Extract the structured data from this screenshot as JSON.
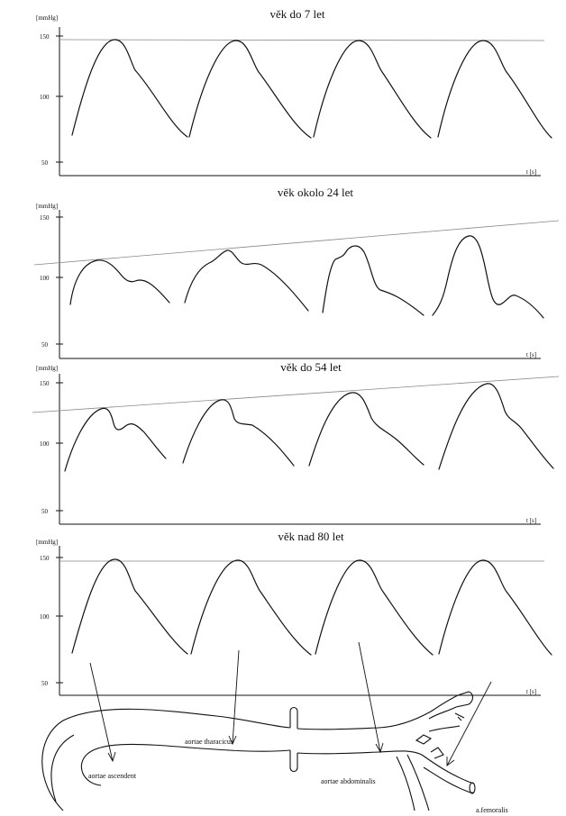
{
  "panels": [
    {
      "title": "věk do 7 let",
      "unit": "[mmHg]",
      "x_unit": "t [s]",
      "ticks": [
        "150",
        "100",
        "50"
      ],
      "reference_line": "horizontal at 150 mmHg"
    },
    {
      "title": "věk okolo 24 let",
      "unit": "[mmHg]",
      "x_unit": "t [s]",
      "ticks": [
        "150",
        "100",
        "50"
      ],
      "reference_line": "rising"
    },
    {
      "title": "věk do 54 let",
      "unit": "[mmHg]",
      "x_unit": "t [s]",
      "ticks": [
        "150",
        "100",
        "50"
      ],
      "reference_line": "rising"
    },
    {
      "title": "věk nad 80 let",
      "unit": "[mmHg]",
      "x_unit": "t [s]",
      "ticks": [
        "150",
        "100",
        "50"
      ],
      "reference_line": "horizontal at 150 mmHg"
    }
  ],
  "vessels": {
    "ascendent": "aortae ascendent",
    "thoracic": "aortae tharacicus",
    "abdominal": "aortae abdominalis",
    "femoral": "a.femoralis"
  }
}
